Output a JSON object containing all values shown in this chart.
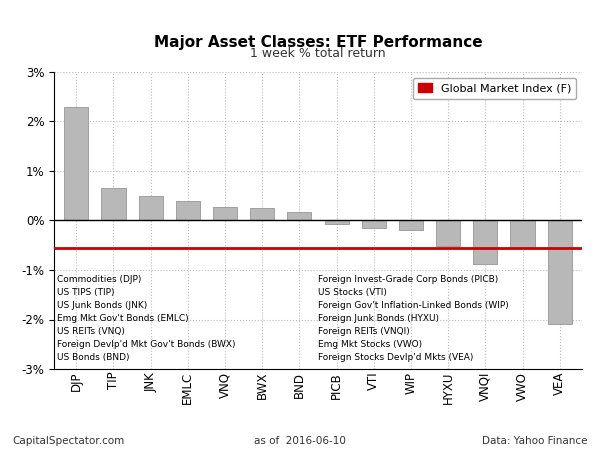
{
  "title": "Major Asset Classes: ETF Performance",
  "subtitle": "1 week % total return",
  "categories": [
    "DJP",
    "TIP",
    "JNK",
    "EMLC",
    "VNQ",
    "BWX",
    "BND",
    "PICB",
    "VTI",
    "WIP",
    "HYXU",
    "VNQI",
    "VWO",
    "VEA"
  ],
  "values": [
    2.3,
    0.65,
    0.5,
    0.4,
    0.28,
    0.25,
    0.18,
    -0.07,
    -0.15,
    -0.2,
    -0.52,
    -0.88,
    -0.55,
    -2.1
  ],
  "bar_color": "#b8b8b8",
  "bar_edge_color": "#888888",
  "global_market_index": -0.55,
  "gmi_color": "#cc0000",
  "ylim": [
    -3,
    3
  ],
  "yticks": [
    -3,
    -2,
    -1,
    0,
    1,
    2,
    3
  ],
  "footnote_left": "CapitalSpectator.com",
  "footnote_center": "as of  2016-06-10",
  "footnote_right": "Data: Yahoo Finance",
  "legend_label": "Global Market Index (F)",
  "legend_items_left": [
    "Commodities (DJP)",
    "US TIPS (TIP)",
    "US Junk Bonds (JNK)",
    "Emg Mkt Gov't Bonds (EMLC)",
    "US REITs (VNQ)",
    "Foreign Devlp'd Mkt Gov't Bonds (BWX)",
    "US Bonds (BND)"
  ],
  "legend_items_right": [
    "Foreign Invest-Grade Corp Bonds (PICB)",
    "US Stocks (VTI)",
    "Foreign Gov't Inflation-Linked Bonds (WIP)",
    "Foreign Junk Bonds (HYXU)",
    "Foreign REITs (VNQI)",
    "Emg Mkt Stocks (VWO)",
    "Foreign Stocks Devlp'd Mkts (VEA)"
  ]
}
